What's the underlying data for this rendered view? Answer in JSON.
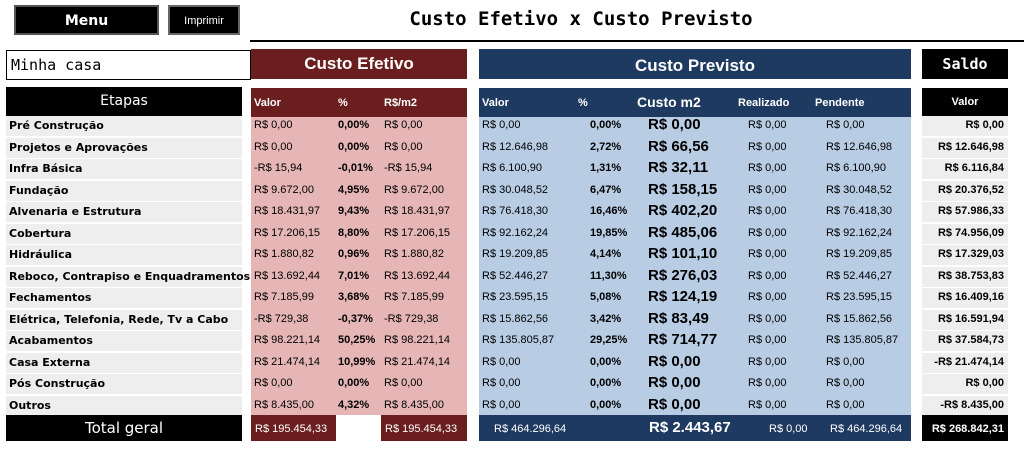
{
  "toolbar": {
    "menu_label": "Menu",
    "print_label": "Imprimir"
  },
  "title": "Custo Efetivo x Custo Previsto",
  "project_name": "Minha casa",
  "sections": {
    "efetivo": "Custo Efetivo",
    "previsto": "Custo Previsto",
    "saldo": "Saldo"
  },
  "columns": {
    "etapas": "Etapas",
    "ef_valor": "Valor",
    "ef_pct": "%",
    "ef_m2": "R$/m2",
    "pv_valor": "Valor",
    "pv_pct": "%",
    "pv_m2": "Custo m2",
    "pv_realizado": "Realizado",
    "pv_pendente": "Pendente",
    "saldo_valor": "Valor"
  },
  "rows": [
    {
      "etapa": "Pré Construção",
      "ef_valor": "R$ 0,00",
      "ef_pct": "0,00%",
      "ef_m2": "R$ 0,00",
      "pv_valor": "R$ 0,00",
      "pv_pct": "0,00%",
      "pv_m2": "R$ 0,00",
      "pv_realizado": "R$ 0,00",
      "pv_pendente": "R$ 0,00",
      "saldo": "R$ 0,00"
    },
    {
      "etapa": "Projetos e Aprovações",
      "ef_valor": "R$ 0,00",
      "ef_pct": "0,00%",
      "ef_m2": "R$ 0,00",
      "pv_valor": "R$ 12.646,98",
      "pv_pct": "2,72%",
      "pv_m2": "R$ 66,56",
      "pv_realizado": "R$ 0,00",
      "pv_pendente": "R$ 12.646,98",
      "saldo": "R$ 12.646,98"
    },
    {
      "etapa": "Infra Básica",
      "ef_valor": "-R$ 15,94",
      "ef_pct": "-0,01%",
      "ef_m2": "-R$ 15,94",
      "pv_valor": "R$ 6.100,90",
      "pv_pct": "1,31%",
      "pv_m2": "R$ 32,11",
      "pv_realizado": "R$ 0,00",
      "pv_pendente": "R$ 6.100,90",
      "saldo": "R$ 6.116,84"
    },
    {
      "etapa": "Fundação",
      "ef_valor": "R$ 9.672,00",
      "ef_pct": "4,95%",
      "ef_m2": "R$ 9.672,00",
      "pv_valor": "R$ 30.048,52",
      "pv_pct": "6,47%",
      "pv_m2": "R$ 158,15",
      "pv_realizado": "R$ 0,00",
      "pv_pendente": "R$ 30.048,52",
      "saldo": "R$ 20.376,52"
    },
    {
      "etapa": "Alvenaria e Estrutura",
      "ef_valor": "R$ 18.431,97",
      "ef_pct": "9,43%",
      "ef_m2": "R$ 18.431,97",
      "pv_valor": "R$ 76.418,30",
      "pv_pct": "16,46%",
      "pv_m2": "R$ 402,20",
      "pv_realizado": "R$ 0,00",
      "pv_pendente": "R$ 76.418,30",
      "saldo": "R$ 57.986,33"
    },
    {
      "etapa": "Cobertura",
      "ef_valor": "R$ 17.206,15",
      "ef_pct": "8,80%",
      "ef_m2": "R$ 17.206,15",
      "pv_valor": "R$ 92.162,24",
      "pv_pct": "19,85%",
      "pv_m2": "R$ 485,06",
      "pv_realizado": "R$ 0,00",
      "pv_pendente": "R$ 92.162,24",
      "saldo": "R$ 74.956,09"
    },
    {
      "etapa": "Hidráulica",
      "ef_valor": "R$ 1.880,82",
      "ef_pct": "0,96%",
      "ef_m2": "R$ 1.880,82",
      "pv_valor": "R$ 19.209,85",
      "pv_pct": "4,14%",
      "pv_m2": "R$ 101,10",
      "pv_realizado": "R$ 0,00",
      "pv_pendente": "R$ 19.209,85",
      "saldo": "R$ 17.329,03"
    },
    {
      "etapa": "Reboco, Contrapiso e Enquadramentos",
      "ef_valor": "R$ 13.692,44",
      "ef_pct": "7,01%",
      "ef_m2": "R$ 13.692,44",
      "pv_valor": "R$ 52.446,27",
      "pv_pct": "11,30%",
      "pv_m2": "R$ 276,03",
      "pv_realizado": "R$ 0,00",
      "pv_pendente": "R$ 52.446,27",
      "saldo": "R$ 38.753,83"
    },
    {
      "etapa": "Fechamentos",
      "ef_valor": "R$ 7.185,99",
      "ef_pct": "3,68%",
      "ef_m2": "R$ 7.185,99",
      "pv_valor": "R$ 23.595,15",
      "pv_pct": "5,08%",
      "pv_m2": "R$ 124,19",
      "pv_realizado": "R$ 0,00",
      "pv_pendente": "R$ 23.595,15",
      "saldo": "R$ 16.409,16"
    },
    {
      "etapa": "Elétrica, Telefonia, Rede, Tv a Cabo",
      "ef_valor": "-R$ 729,38",
      "ef_pct": "-0,37%",
      "ef_m2": "-R$ 729,38",
      "pv_valor": "R$ 15.862,56",
      "pv_pct": "3,42%",
      "pv_m2": "R$ 83,49",
      "pv_realizado": "R$ 0,00",
      "pv_pendente": "R$ 15.862,56",
      "saldo": "R$ 16.591,94"
    },
    {
      "etapa": "Acabamentos",
      "ef_valor": "R$ 98.221,14",
      "ef_pct": "50,25%",
      "ef_m2": "R$ 98.221,14",
      "pv_valor": "R$ 135.805,87",
      "pv_pct": "29,25%",
      "pv_m2": "R$ 714,77",
      "pv_realizado": "R$ 0,00",
      "pv_pendente": "R$ 135.805,87",
      "saldo": "R$ 37.584,73"
    },
    {
      "etapa": "Casa Externa",
      "ef_valor": "R$ 21.474,14",
      "ef_pct": "10,99%",
      "ef_m2": "R$ 21.474,14",
      "pv_valor": "R$ 0,00",
      "pv_pct": "0,00%",
      "pv_m2": "R$ 0,00",
      "pv_realizado": "R$ 0,00",
      "pv_pendente": "R$ 0,00",
      "saldo": "-R$ 21.474,14"
    },
    {
      "etapa": "Pós Construção",
      "ef_valor": "R$ 0,00",
      "ef_pct": "0,00%",
      "ef_m2": "R$ 0,00",
      "pv_valor": "R$ 0,00",
      "pv_pct": "0,00%",
      "pv_m2": "R$ 0,00",
      "pv_realizado": "R$ 0,00",
      "pv_pendente": "R$ 0,00",
      "saldo": "R$ 0,00"
    },
    {
      "etapa": "Outros",
      "ef_valor": "R$ 8.435,00",
      "ef_pct": "4,32%",
      "ef_m2": "R$ 8.435,00",
      "pv_valor": "R$ 0,00",
      "pv_pct": "0,00%",
      "pv_m2": "R$ 0,00",
      "pv_realizado": "R$ 0,00",
      "pv_pendente": "R$ 0,00",
      "saldo": "-R$ 8.435,00"
    }
  ],
  "total": {
    "label": "Total geral",
    "ef_valor": "R$ 195.454,33",
    "ef_m2": "R$ 195.454,33",
    "pv_valor": "R$ 464.296,64",
    "pv_m2": "R$ 2.443,67",
    "pv_realizado": "R$ 0,00",
    "pv_pendente": "R$ 464.296,64",
    "saldo": "R$ 268.842,31"
  },
  "colors": {
    "efetivo_dark": "#6b1e1e",
    "efetivo_light": "#e6b6b6",
    "previsto_dark": "#1f3a60",
    "previsto_light": "#b8cce4"
  }
}
